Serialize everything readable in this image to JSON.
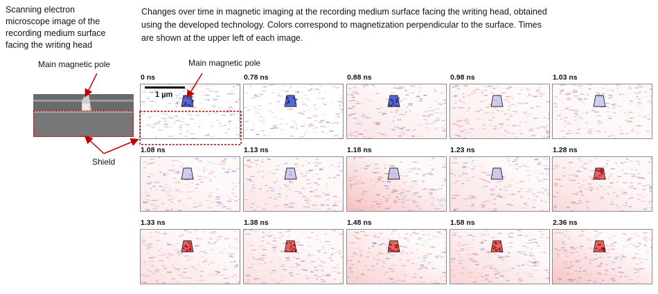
{
  "captions": {
    "sem": "Scanning electron\nmicroscope image of the\nrecording medium surface\nfacing the writing head",
    "top": "Changes over time in magnetic imaging at the recording medium surface facing the writing head, obtained\nusing the developed technology. Colors correspond to magnetization perpendicular to the surface. Times\nare shown at the upper left of each image."
  },
  "labels": {
    "main_pole_left": "Main magnetic pole",
    "main_pole_mid": "Main magnetic pole",
    "shield": "Shield",
    "scale": "1 µm"
  },
  "colors": {
    "red": "#e24040",
    "blue": "#3a4fd0",
    "annotation": "#c00000"
  },
  "frames": [
    {
      "time": "0 ns"
    },
    {
      "time": "0.78 ns"
    },
    {
      "time": "0.88 ns"
    },
    {
      "time": "0.98 ns"
    },
    {
      "time": "1.03 ns"
    },
    {
      "time": "1.08 ns"
    },
    {
      "time": "1.13 ns"
    },
    {
      "time": "1.18 ns"
    },
    {
      "time": "1.23 ns"
    },
    {
      "time": "1.28 ns"
    },
    {
      "time": "1.33 ns"
    },
    {
      "time": "1.38 ns"
    },
    {
      "time": "1.48 ns"
    },
    {
      "time": "1.58 ns"
    },
    {
      "time": "2.36 ns"
    }
  ]
}
